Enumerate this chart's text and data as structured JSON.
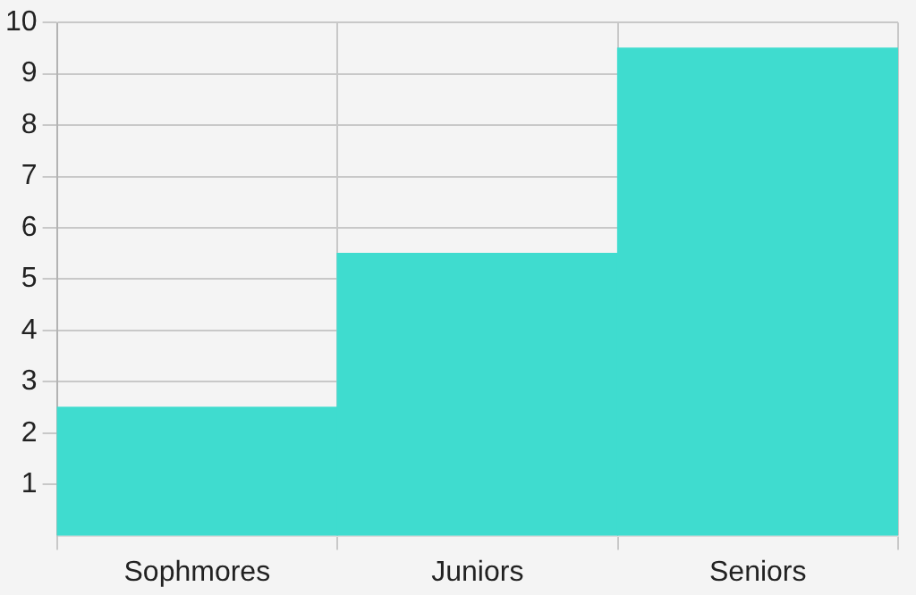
{
  "chart_data": {
    "type": "bar",
    "categories": [
      "Sophmores",
      "Juniors",
      "Seniors"
    ],
    "values": [
      2.5,
      5.5,
      9.5
    ],
    "color": "#3fdccf",
    "ylim": [
      0,
      10
    ],
    "yticks": [
      1,
      2,
      3,
      4,
      5,
      6,
      7,
      8,
      9,
      10
    ],
    "grid": true
  }
}
